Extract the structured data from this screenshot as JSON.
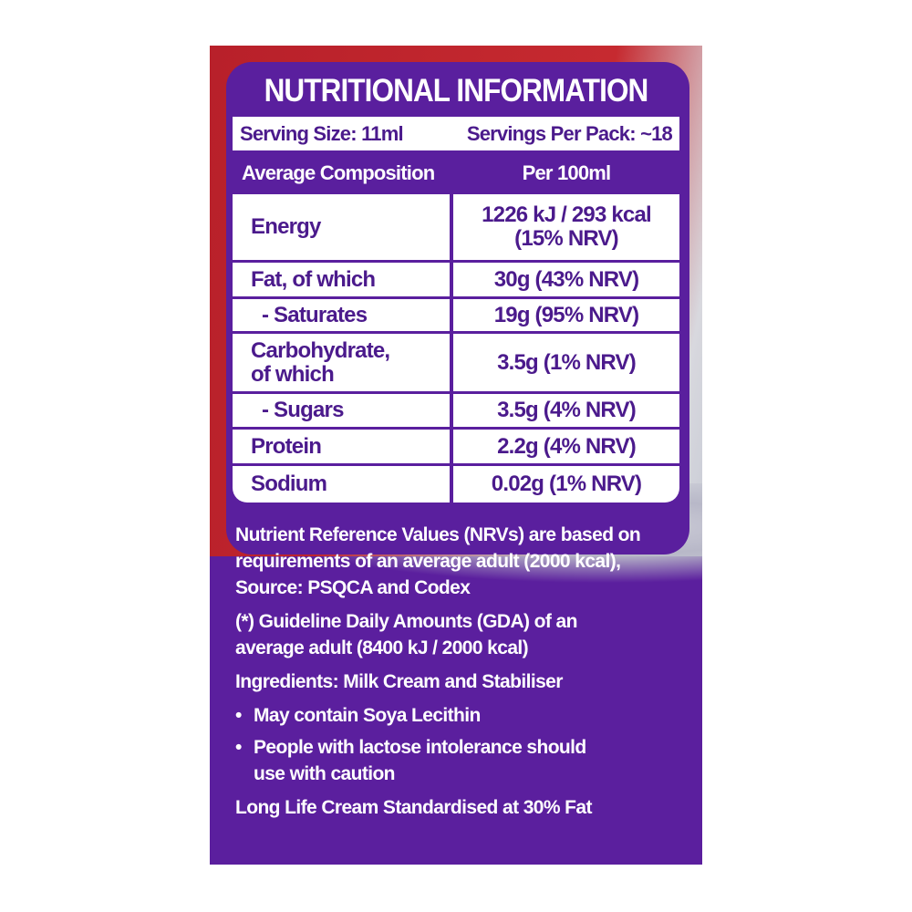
{
  "title": "NUTRITIONAL INFORMATION",
  "serving_size": "Serving Size: 11ml",
  "servings_per_pack": "Servings Per Pack: ~18",
  "headers": [
    "Average Composition",
    "Per 100ml"
  ],
  "rows": [
    {
      "name": "Energy",
      "value": "1226 kJ / 293 kcal (15% NRV)"
    },
    {
      "name": "Fat, of which",
      "value": "30g (43% NRV)"
    },
    {
      "name": "- Saturates",
      "value": "19g (95% NRV)"
    },
    {
      "name": "Carbohydrate, of which",
      "value": "3.5g (1% NRV)"
    },
    {
      "name": "- Sugars",
      "value": "3.5g (4% NRV)"
    },
    {
      "name": "Protein",
      "value": "2.2g (4% NRV)"
    },
    {
      "name": "Sodium",
      "value": "0.02g (1% NRV)"
    }
  ],
  "nrv_note": "Nutrient Reference Values (NRVs) are based on requirements of an average adult (2000 kcal), Source: PSQCA and Codex",
  "gda_note": "(*) Guideline Daily Amounts (GDA) of an average adult (8400 kJ / 2000 kcal)",
  "ingredients": "Ingredients: Milk Cream and Stabiliser",
  "bullets": [
    "May contain Soya Lecithin",
    "People with lactose intolerance should use with caution"
  ],
  "footer": "Long Life Cream Standardised at 30% Fat",
  "colors": {
    "purple": "#5a1f9e",
    "red": "#c62a30",
    "text": "#4b1a8c"
  }
}
